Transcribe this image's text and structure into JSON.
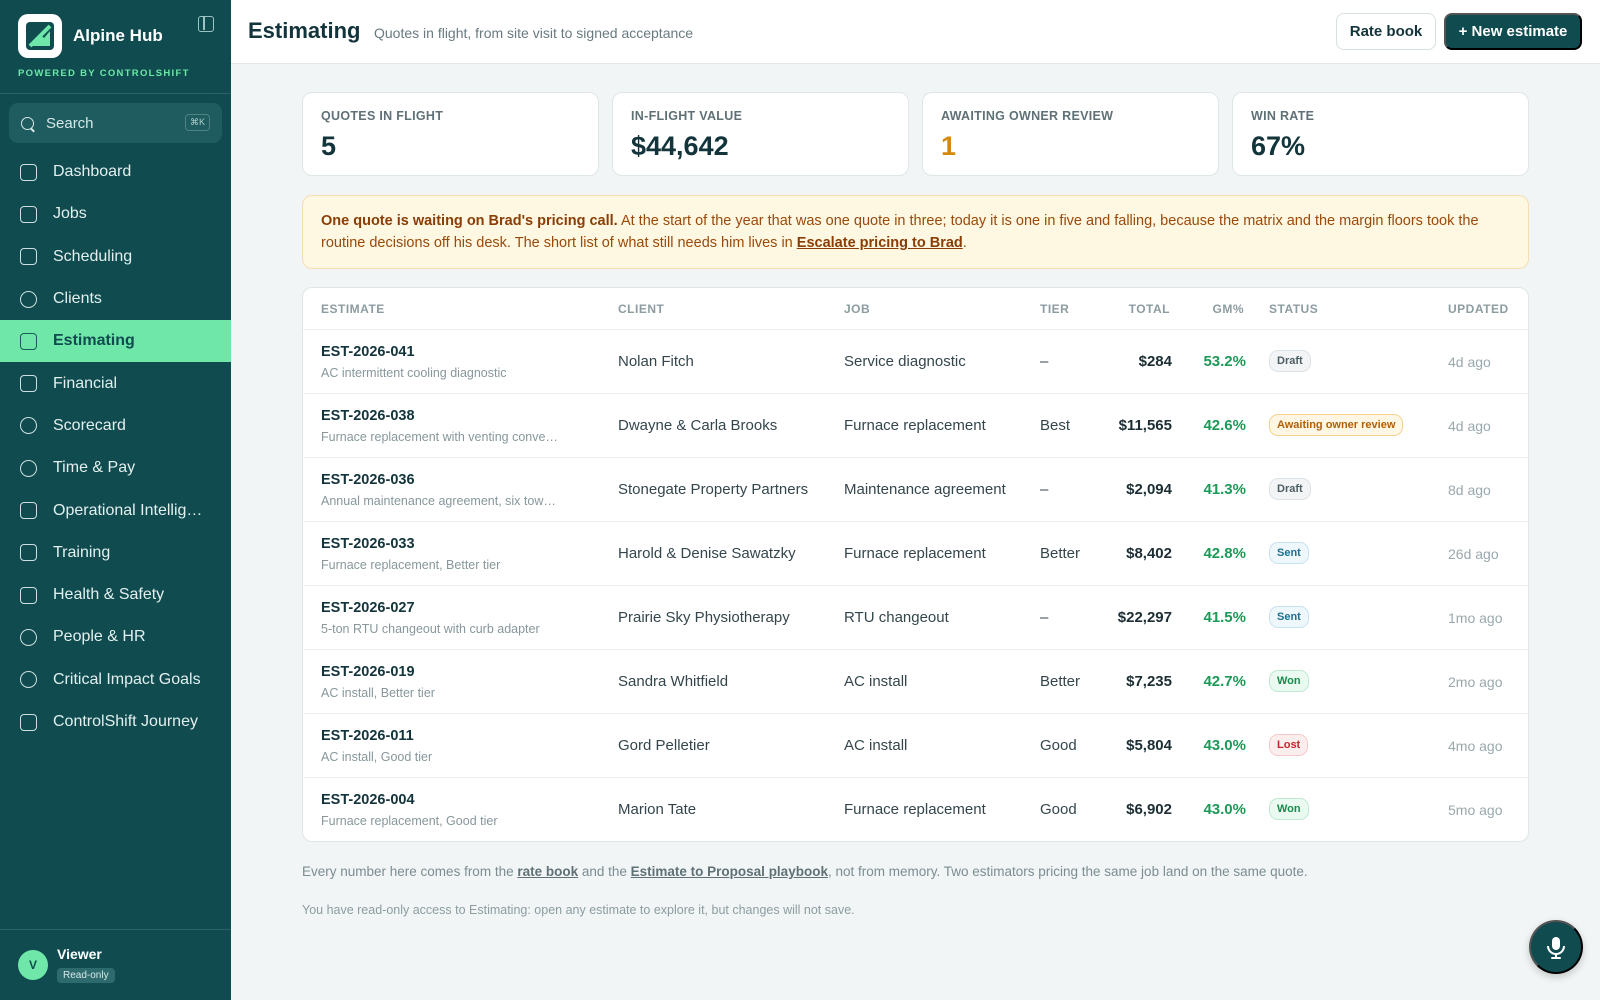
{
  "app": {
    "name": "Alpine Hub",
    "powered_by": "POWERED BY CONTROLSHIFT"
  },
  "colors": {
    "sidebar_bg": "#0f4b4f",
    "accent": "#6ee7a8",
    "primary_button": "#0f4b4f",
    "gm_green": "#1c9a58",
    "warning_amber": "#d48a0c"
  },
  "sidebar": {
    "search": {
      "label": "Search",
      "shortcut": "⌘K",
      "icon": "search-icon"
    },
    "items": [
      {
        "label": "Dashboard",
        "icon": "dashboard-icon",
        "active": false
      },
      {
        "label": "Jobs",
        "icon": "briefcase-icon",
        "active": false
      },
      {
        "label": "Scheduling",
        "icon": "calendar-icon",
        "active": false
      },
      {
        "label": "Clients",
        "icon": "clients-icon",
        "active": false
      },
      {
        "label": "Estimating",
        "icon": "calculator-icon",
        "active": true
      },
      {
        "label": "Financial",
        "icon": "credit-card-icon",
        "active": false
      },
      {
        "label": "Scorecard",
        "icon": "gauge-icon",
        "active": false
      },
      {
        "label": "Time & Pay",
        "icon": "clock-icon",
        "active": false
      },
      {
        "label": "Operational Intellige…",
        "icon": "book-icon",
        "active": false
      },
      {
        "label": "Training",
        "icon": "graduation-cap-icon",
        "active": false
      },
      {
        "label": "Health & Safety",
        "icon": "shield-icon",
        "active": false
      },
      {
        "label": "People & HR",
        "icon": "users-icon",
        "active": false
      },
      {
        "label": "Critical Impact Goals",
        "icon": "target-icon",
        "active": false
      },
      {
        "label": "ControlShift Journey",
        "icon": "route-icon",
        "active": false
      }
    ],
    "user": {
      "initial": "V",
      "name": "Viewer",
      "role": "Read-only"
    }
  },
  "header": {
    "title": "Estimating",
    "subtitle": "Quotes in flight, from site visit to signed acceptance",
    "rate_book_label": "Rate book",
    "new_estimate_label": "+ New estimate"
  },
  "kpis": [
    {
      "label": "QUOTES IN FLIGHT",
      "value": "5"
    },
    {
      "label": "IN-FLIGHT VALUE",
      "value": "$44,642"
    },
    {
      "label": "AWAITING OWNER REVIEW",
      "value": "1"
    },
    {
      "label": "WIN RATE",
      "value": "67%"
    }
  ],
  "callout": {
    "bold": "One quote is waiting on Brad's pricing call.",
    "text": " At the start of the year that was one quote in three; today it is one in five and falling, because the matrix and the margin floors took the routine decisions off his desk. The short list of what still needs him lives in ",
    "link": "Escalate pricing to Brad",
    "end": "."
  },
  "table": {
    "columns": {
      "estimate": "ESTIMATE",
      "client": "CLIENT",
      "job": "JOB",
      "tier": "TIER",
      "total": "TOTAL",
      "gm": "GM%",
      "status": "STATUS",
      "updated": "UPDATED"
    },
    "rows": [
      {
        "id": "EST-2026-041",
        "desc": "AC intermittent cooling diagnostic",
        "client": "Nolan Fitch",
        "job": "Service diagnostic",
        "tier": "–",
        "total": "$284",
        "gm": "53.2%",
        "status": "Draft",
        "status_kind": "draft",
        "updated": "4d ago"
      },
      {
        "id": "EST-2026-038",
        "desc": "Furnace replacement with venting conve…",
        "client": "Dwayne & Carla Brooks",
        "job": "Furnace replacement",
        "tier": "Best",
        "total": "$11,565",
        "gm": "42.6%",
        "status": "Awaiting owner review",
        "status_kind": "awaiting",
        "updated": "4d ago"
      },
      {
        "id": "EST-2026-036",
        "desc": "Annual maintenance agreement, six tow…",
        "client": "Stonegate Property Partners",
        "job": "Maintenance agreement",
        "tier": "–",
        "total": "$2,094",
        "gm": "41.3%",
        "status": "Draft",
        "status_kind": "draft",
        "updated": "8d ago"
      },
      {
        "id": "EST-2026-033",
        "desc": "Furnace replacement, Better tier",
        "client": "Harold & Denise Sawatzky",
        "job": "Furnace replacement",
        "tier": "Better",
        "total": "$8,402",
        "gm": "42.8%",
        "status": "Sent",
        "status_kind": "sent",
        "updated": "26d ago"
      },
      {
        "id": "EST-2026-027",
        "desc": "5-ton RTU changeout with curb adapter",
        "client": "Prairie Sky Physiotherapy",
        "job": "RTU changeout",
        "tier": "–",
        "total": "$22,297",
        "gm": "41.5%",
        "status": "Sent",
        "status_kind": "sent",
        "updated": "1mo ago"
      },
      {
        "id": "EST-2026-019",
        "desc": "AC install, Better tier",
        "client": "Sandra Whitfield",
        "job": "AC install",
        "tier": "Better",
        "total": "$7,235",
        "gm": "42.7%",
        "status": "Won",
        "status_kind": "won",
        "updated": "2mo ago"
      },
      {
        "id": "EST-2026-011",
        "desc": "AC install, Good tier",
        "client": "Gord Pelletier",
        "job": "AC install",
        "tier": "Good",
        "total": "$5,804",
        "gm": "43.0%",
        "status": "Lost",
        "status_kind": "lost",
        "updated": "4mo ago"
      },
      {
        "id": "EST-2026-004",
        "desc": "Furnace replacement, Good tier",
        "client": "Marion Tate",
        "job": "Furnace replacement",
        "tier": "Good",
        "total": "$6,902",
        "gm": "43.0%",
        "status": "Won",
        "status_kind": "won",
        "updated": "5mo ago"
      }
    ]
  },
  "footer": {
    "note_a": "Every number here comes from the ",
    "link_rate_book": "rate book",
    "note_b": " and the ",
    "link_playbook": "Estimate to Proposal playbook",
    "note_c": ", not from memory. Two estimators pricing the same job land on the same quote.",
    "readonly_note": "You have read-only access to Estimating: open any estimate to explore it, but changes will not save."
  },
  "mic": {
    "icon": "microphone-icon"
  }
}
